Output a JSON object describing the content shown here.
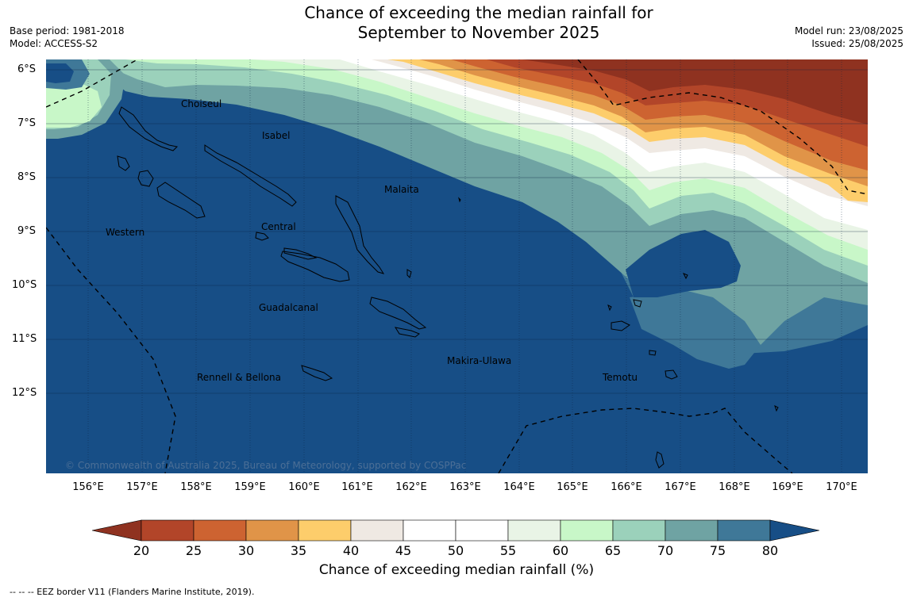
{
  "title": {
    "line1": "Chance of exceeding the median rainfall for",
    "line2": "September to November 2025"
  },
  "meta": {
    "base_period": "Base period: 1981-2018",
    "model": "Model: ACCESS-S2",
    "model_run": "Model run: 23/08/2025",
    "issued": "Issued: 25/08/2025"
  },
  "axes": {
    "lat_labels": [
      "6°S",
      "7°S",
      "8°S",
      "9°S",
      "10°S",
      "11°S",
      "12°S"
    ],
    "lon_labels": [
      "156°E",
      "157°E",
      "158°E",
      "159°E",
      "160°E",
      "161°E",
      "162°E",
      "163°E",
      "164°E",
      "165°E",
      "166°E",
      "167°E",
      "168°E",
      "169°E",
      "170°E"
    ]
  },
  "places": [
    {
      "name": "Choiseul"
    },
    {
      "name": "Isabel"
    },
    {
      "name": "Malaita"
    },
    {
      "name": "Western"
    },
    {
      "name": "Central"
    },
    {
      "name": "Guadalcanal"
    },
    {
      "name": "Makira-Ulawa"
    },
    {
      "name": "Temotu"
    },
    {
      "name": "Rennell & Bellona"
    }
  ],
  "copyright": "© Commonwealth of Australia 2025, Bureau of Meteorology, supported by COSPPac",
  "colorbar": {
    "ticks": [
      "20",
      "25",
      "30",
      "35",
      "40",
      "45",
      "50",
      "55",
      "60",
      "65",
      "70",
      "75",
      "80"
    ],
    "colors": [
      "#8f3220",
      "#b24529",
      "#cd6331",
      "#e09448",
      "#fdcd6b",
      "#efe9e3",
      "#ffffff",
      "#ffffff",
      "#e9f4e6",
      "#c8f7c8",
      "#9bd1bb",
      "#6fa3a3",
      "#3f7898",
      "#174e86"
    ],
    "label": "Chance of exceeding median rainfall (%)"
  },
  "eez_note": "-- -- -- EEZ border V11 (Flanders Marine Institute, 2019)."
}
